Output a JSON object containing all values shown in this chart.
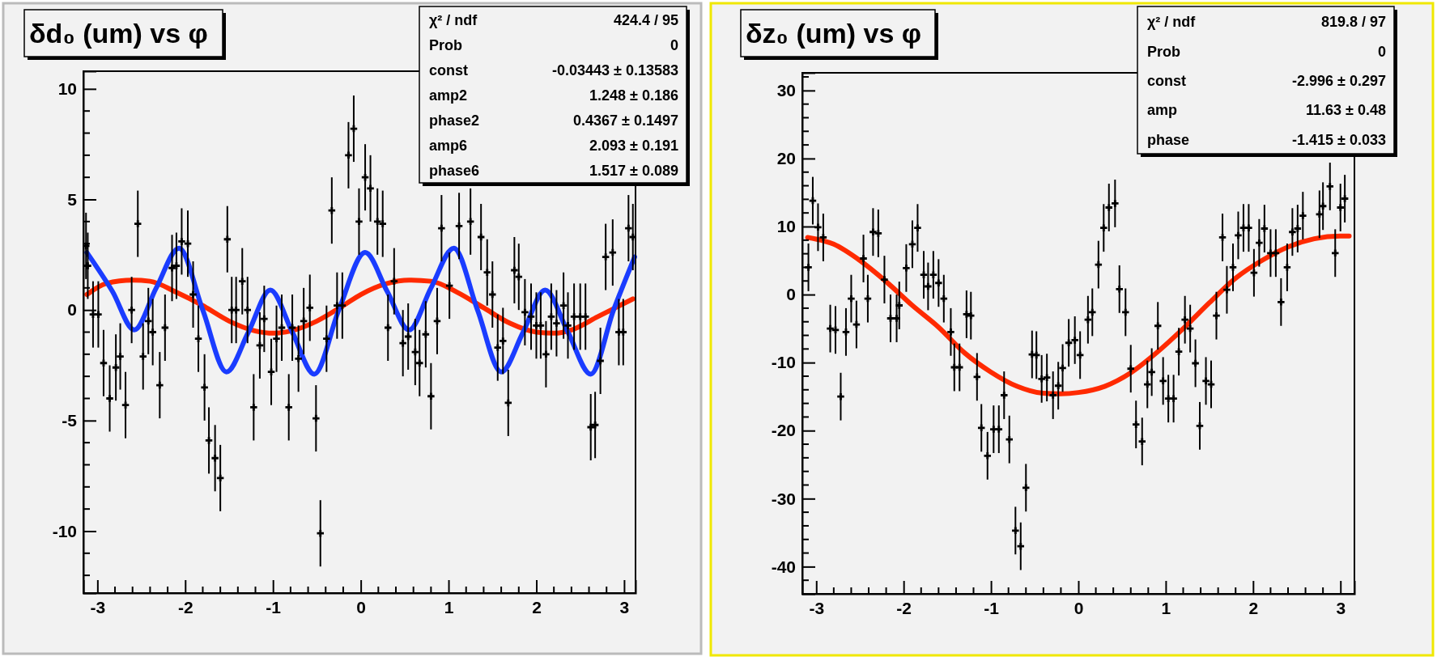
{
  "chart_data": [
    {
      "type": "scatter",
      "title": "δd₀ (um) vs φ",
      "xlim": [
        -3.16,
        3.13
      ],
      "xticks": [
        -3,
        -2,
        -1,
        0,
        1,
        2,
        3
      ],
      "ylim": [
        -12.8,
        10.8
      ],
      "yticks": [
        -10,
        -5,
        0,
        5,
        10
      ],
      "grid": false,
      "annotations": [
        "χ² / ndf",
        "424.4 / 95",
        "Prob",
        "0",
        "const",
        "-0.03443 ± 0.13583",
        "amp2",
        "1.248 ± 0.186",
        "phase2",
        "0.4367 ± 0.1497",
        "amp6",
        "2.093 ± 0.191",
        "phase6",
        "1.517 ± 0.089"
      ],
      "series": [
        {
          "color": "#000000",
          "marker": "cross",
          "x": [
            -3.13,
            -3.11,
            -3.05,
            -2.99,
            -2.93,
            -2.86,
            -2.79,
            -2.74,
            -2.68,
            -2.61,
            -2.54,
            -2.48,
            -2.42,
            -2.37,
            -2.29,
            -2.23,
            -2.15,
            -2.1,
            -2.04,
            -1.97,
            -1.91,
            -1.85,
            -1.78,
            -1.73,
            -1.66,
            -1.6,
            -1.52,
            -1.47,
            -1.42,
            -1.35,
            -1.29,
            -1.22,
            -1.15,
            -1.1,
            -1.02,
            -0.96,
            -0.9,
            -0.82,
            -0.78,
            -0.71,
            -0.65,
            -0.58,
            -0.51,
            -0.46,
            -0.39,
            -0.33,
            -0.27,
            -0.21,
            -0.14,
            -0.08,
            -0.02,
            0.05,
            0.11,
            0.19,
            0.25,
            0.31,
            0.38,
            0.48,
            0.54,
            0.62,
            0.67,
            0.74,
            0.8,
            0.87,
            0.92,
            1.01,
            1.12,
            1.25,
            1.37,
            1.44,
            1.5,
            1.56,
            1.62,
            1.68,
            1.75,
            1.8,
            1.87,
            1.94,
            2.0,
            2.05,
            2.11,
            2.17,
            2.23,
            2.31,
            2.36,
            2.43,
            2.5,
            2.56,
            2.62,
            2.67,
            2.73,
            2.79,
            2.87,
            2.94,
            2.99,
            3.05,
            3.1
          ],
          "values": [
            2.9,
            2.0,
            -0.2,
            -0.2,
            -2.4,
            -4.0,
            -2.6,
            -2.1,
            -4.3,
            0.0,
            3.9,
            -2.1,
            -0.5,
            -1.0,
            -3.4,
            -0.8,
            1.9,
            2.0,
            3.1,
            3.0,
            0.7,
            -1.3,
            -3.5,
            -5.9,
            -6.7,
            -7.6,
            3.2,
            0.0,
            0.0,
            1.3,
            0.0,
            -4.4,
            -1.6,
            -0.4,
            -2.8,
            -1.3,
            -0.8,
            -4.4,
            -0.8,
            -2.2,
            -0.5,
            0.1,
            -4.9,
            -10.1,
            -1.3,
            4.5,
            0.2,
            0.2,
            7.0,
            8.2,
            4.0,
            6.0,
            5.5,
            4.0,
            3.9,
            -0.8,
            1.3,
            -1.5,
            -1.2,
            -1.9,
            -2.4,
            -1.1,
            -3.9,
            -0.5,
            3.7,
            1.1,
            3.8,
            4.0,
            3.3,
            1.7,
            0.7,
            -1.7,
            -1.4,
            -4.2,
            1.8,
            1.5,
            -0.1,
            -0.3,
            -0.7,
            -0.7,
            -2.0,
            -0.3,
            -0.6,
            0.2,
            -0.7,
            -0.3,
            -0.3,
            -0.3,
            -5.3,
            -5.2,
            -2.3,
            2.4,
            2.6,
            -1.0,
            -1.0,
            3.7,
            3.3
          ],
          "errors": [
            1.5,
            1.5,
            1.5,
            1.5,
            1.5,
            1.5,
            1.5,
            1.5,
            1.5,
            1.5,
            1.5,
            1.5,
            1.5,
            1.5,
            1.5,
            1.5,
            1.5,
            1.5,
            1.5,
            1.5,
            1.5,
            1.5,
            1.5,
            1.5,
            1.5,
            1.5,
            1.5,
            1.5,
            1.5,
            1.5,
            1.5,
            1.5,
            1.5,
            1.5,
            1.5,
            1.5,
            1.5,
            1.5,
            1.5,
            1.5,
            1.5,
            1.5,
            1.5,
            1.5,
            1.5,
            1.5,
            1.5,
            1.5,
            1.5,
            1.5,
            1.5,
            1.5,
            1.5,
            1.5,
            1.5,
            1.5,
            1.5,
            1.5,
            1.5,
            1.5,
            1.5,
            1.5,
            1.5,
            1.5,
            1.5,
            1.5,
            1.5,
            1.5,
            1.5,
            1.5,
            1.5,
            1.5,
            1.5,
            1.5,
            1.5,
            1.5,
            1.5,
            1.5,
            1.5,
            1.5,
            1.5,
            1.5,
            1.5,
            1.5,
            1.5,
            1.5,
            1.5,
            1.5,
            1.5,
            1.5,
            1.5,
            1.5,
            1.5,
            1.5,
            1.5,
            1.5,
            1.5
          ]
        },
        {
          "type": "line",
          "color": "#ff2a00",
          "line_style": "solid",
          "x": [
            -3.12,
            -2.9,
            -2.6,
            -2.4,
            -2.1,
            -1.8,
            -1.5,
            -1.2,
            -1.0,
            -0.8,
            -0.5,
            -0.2,
            0.0,
            0.3,
            0.55,
            0.8,
            1.1,
            1.4,
            1.7,
            2.0,
            2.2,
            2.4,
            2.7,
            3.1
          ],
          "values": [
            0.7,
            1.2,
            1.35,
            1.3,
            0.8,
            0.2,
            -0.5,
            -0.95,
            -1.05,
            -0.95,
            -0.5,
            0.2,
            0.7,
            1.2,
            1.35,
            1.3,
            0.8,
            0.1,
            -0.6,
            -1.0,
            -1.05,
            -0.9,
            -0.3,
            0.5
          ]
        },
        {
          "type": "line",
          "color": "#1a3cff",
          "line_style": "solid",
          "x": [
            -3.12,
            -2.83,
            -2.58,
            -2.33,
            -2.07,
            -1.8,
            -1.53,
            -1.28,
            -1.03,
            -0.78,
            -0.53,
            -0.25,
            0.05,
            0.3,
            0.55,
            0.8,
            1.06,
            1.33,
            1.6,
            1.85,
            2.1,
            2.36,
            2.62,
            2.88,
            3.12
          ],
          "values": [
            2.6,
            0.85,
            -0.9,
            1.0,
            2.8,
            0.0,
            -2.8,
            -1.0,
            0.9,
            -1.0,
            -2.9,
            0.0,
            2.6,
            0.85,
            -0.9,
            1.0,
            2.8,
            0.0,
            -2.8,
            -1.0,
            0.9,
            -1.0,
            -2.9,
            0.0,
            2.4
          ]
        }
      ]
    },
    {
      "type": "scatter",
      "title": "δz₀ (um) vs φ",
      "xlim": [
        -3.16,
        3.16
      ],
      "xticks": [
        -3,
        -2,
        -1,
        0,
        1,
        2,
        3
      ],
      "ylim": [
        -44,
        32.6
      ],
      "yticks": [
        -40,
        -30,
        -20,
        -10,
        0,
        10,
        20,
        30
      ],
      "grid": false,
      "annotations": [
        "χ² / ndf",
        "819.8 / 97",
        "Prob",
        "0",
        "const",
        "-2.996 ± 0.297",
        "amp",
        "11.63 ± 0.48",
        "phase",
        "-1.415 ± 0.033"
      ],
      "series": [
        {
          "color": "#000000",
          "marker": "cross",
          "x": [
            -3.09,
            -3.04,
            -2.98,
            -2.92,
            -2.84,
            -2.78,
            -2.72,
            -2.66,
            -2.6,
            -2.54,
            -2.46,
            -2.41,
            -2.35,
            -2.29,
            -2.22,
            -2.15,
            -2.08,
            -2.05,
            -1.97,
            -1.9,
            -1.84,
            -1.77,
            -1.72,
            -1.66,
            -1.6,
            -1.54,
            -1.46,
            -1.42,
            -1.36,
            -1.28,
            -1.23,
            -1.16,
            -1.11,
            -1.04,
            -0.97,
            -0.91,
            -0.85,
            -0.79,
            -0.72,
            -0.66,
            -0.6,
            -0.53,
            -0.48,
            -0.42,
            -0.36,
            -0.29,
            -0.23,
            -0.18,
            -0.11,
            -0.04,
            0.02,
            0.11,
            0.16,
            0.23,
            0.29,
            0.35,
            0.42,
            0.47,
            0.54,
            0.6,
            0.66,
            0.73,
            0.79,
            0.84,
            0.91,
            0.97,
            1.03,
            1.09,
            1.15,
            1.22,
            1.28,
            1.34,
            1.39,
            1.46,
            1.52,
            1.58,
            1.65,
            1.7,
            1.77,
            1.83,
            1.89,
            1.95,
            2.01,
            2.07,
            2.13,
            2.2,
            2.26,
            2.32,
            2.39,
            2.45,
            2.51,
            2.57,
            2.76,
            2.8,
            2.88,
            2.94,
            3.0,
            3.05
          ],
          "values": [
            4.0,
            13.8,
            9.9,
            8.4,
            -5.0,
            -5.2,
            -15.0,
            -5.5,
            -0.6,
            -4.4,
            5.3,
            -0.6,
            9.2,
            9.0,
            2.2,
            -3.5,
            -3.5,
            -1.6,
            3.9,
            7.4,
            9.8,
            2.9,
            1.2,
            2.9,
            1.7,
            -0.6,
            -5.5,
            -10.7,
            -10.7,
            -2.9,
            -3.1,
            -12.1,
            -19.6,
            -23.7,
            -19.8,
            -19.8,
            -14.8,
            -21.3,
            -34.7,
            -37.0,
            -28.4,
            -8.8,
            -8.9,
            -12.4,
            -12.2,
            -14.8,
            -13.4,
            -10.8,
            -7.1,
            -6.7,
            -8.9,
            -3.7,
            -2.6,
            4.4,
            9.8,
            12.8,
            13.4,
            0.8,
            -2.6,
            -10.9,
            -19.1,
            -21.6,
            -13.2,
            -11.4,
            -4.6,
            -12.7,
            -15.3,
            -15.3,
            -8.4,
            -3.7,
            -5.0,
            -10.1,
            -19.3,
            -12.7,
            -13.2,
            -3.1,
            8.4,
            0.7,
            4.0,
            8.7,
            9.8,
            9.8,
            3.2,
            7.6,
            9.7,
            6.1,
            6.1,
            -1.1,
            4.0,
            9.2,
            9.7,
            11.6,
            11.8,
            13.0,
            15.9,
            6.1,
            12.8,
            14.1
          ],
          "errors": [
            3.5,
            3.5,
            3.5,
            3.5,
            3.5,
            3.5,
            3.5,
            3.5,
            3.5,
            3.5,
            3.5,
            3.5,
            3.5,
            3.5,
            3.5,
            3.5,
            3.5,
            3.5,
            3.5,
            3.5,
            3.5,
            3.5,
            3.5,
            3.5,
            3.5,
            3.5,
            3.5,
            3.5,
            3.5,
            3.5,
            3.5,
            3.5,
            3.5,
            3.5,
            3.5,
            3.5,
            3.5,
            3.5,
            3.5,
            3.5,
            3.5,
            3.5,
            3.5,
            3.5,
            3.5,
            3.5,
            3.5,
            3.5,
            3.5,
            3.5,
            3.5,
            3.5,
            3.5,
            3.5,
            3.5,
            3.5,
            3.5,
            3.5,
            3.5,
            3.5,
            3.5,
            3.5,
            3.5,
            3.5,
            3.5,
            3.5,
            3.5,
            3.5,
            3.5,
            3.5,
            3.5,
            3.5,
            3.5,
            3.5,
            3.5,
            3.5,
            3.5,
            3.5,
            3.5,
            3.5,
            3.5,
            3.5,
            3.5,
            3.5,
            3.5,
            3.5,
            3.5,
            3.5,
            3.5,
            3.5,
            3.5,
            3.5,
            3.5,
            3.5,
            3.5,
            3.5,
            3.5,
            3.5
          ]
        },
        {
          "type": "line",
          "color": "#ff2a00",
          "line_style": "solid",
          "x": [
            -3.1,
            -2.8,
            -2.5,
            -2.2,
            -1.9,
            -1.6,
            -1.3,
            -1.0,
            -0.7,
            -0.4,
            -0.2,
            0.0,
            0.3,
            0.6,
            0.9,
            1.2,
            1.5,
            1.8,
            2.1,
            2.4,
            2.7,
            3.0,
            3.1
          ],
          "values": [
            8.4,
            7.4,
            5.0,
            1.9,
            -1.6,
            -4.8,
            -8.6,
            -11.4,
            -13.5,
            -14.5,
            -14.6,
            -14.4,
            -13.5,
            -11.5,
            -8.5,
            -5.0,
            -1.2,
            2.4,
            5.0,
            7.0,
            8.2,
            8.6,
            8.6
          ]
        }
      ]
    }
  ]
}
